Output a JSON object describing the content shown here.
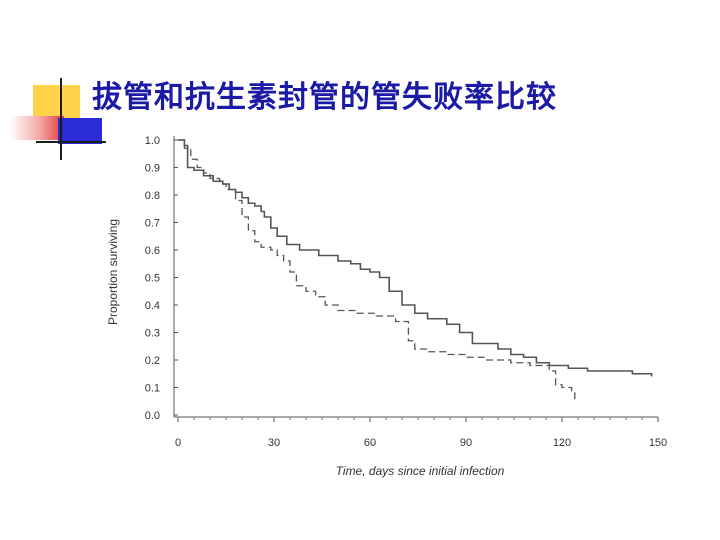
{
  "slide": {
    "title": "拔管和抗生素封管的管失败率比较"
  },
  "colors": {
    "title": "#1a1aa6",
    "deco_yellow": "#ffd24a",
    "deco_blue": "#2b2bd8",
    "deco_pink": "#e23b3b",
    "curve": "#555555"
  },
  "chart_data": {
    "type": "line",
    "title": "",
    "xlabel": "Time, days since initial infection",
    "ylabel": "Proportion surviving",
    "xlim": [
      0,
      150
    ],
    "ylim": [
      0,
      1.0
    ],
    "xticks": [
      0,
      30,
      60,
      90,
      120,
      150
    ],
    "yticks": [
      "0.0",
      "0.1",
      "0.2",
      "0.3",
      "0.4",
      "0.5",
      "0.6",
      "0.7",
      "0.8",
      "0.9",
      "1.0"
    ],
    "grid": false,
    "series": [
      {
        "style": "solid",
        "points": [
          [
            0,
            1.0
          ],
          [
            2,
            0.98
          ],
          [
            3,
            0.9
          ],
          [
            5,
            0.89
          ],
          [
            8,
            0.87
          ],
          [
            11,
            0.85
          ],
          [
            14,
            0.84
          ],
          [
            16,
            0.82
          ],
          [
            18,
            0.81
          ],
          [
            20,
            0.79
          ],
          [
            22,
            0.77
          ],
          [
            24,
            0.76
          ],
          [
            26,
            0.74
          ],
          [
            27,
            0.72
          ],
          [
            29,
            0.68
          ],
          [
            31,
            0.65
          ],
          [
            34,
            0.62
          ],
          [
            38,
            0.6
          ],
          [
            44,
            0.58
          ],
          [
            50,
            0.56
          ],
          [
            54,
            0.55
          ],
          [
            57,
            0.53
          ],
          [
            60,
            0.52
          ],
          [
            63,
            0.5
          ],
          [
            66,
            0.45
          ],
          [
            70,
            0.4
          ],
          [
            74,
            0.37
          ],
          [
            78,
            0.35
          ],
          [
            84,
            0.33
          ],
          [
            88,
            0.3
          ],
          [
            92,
            0.26
          ],
          [
            100,
            0.24
          ],
          [
            104,
            0.22
          ],
          [
            108,
            0.21
          ],
          [
            112,
            0.19
          ],
          [
            116,
            0.18
          ],
          [
            122,
            0.17
          ],
          [
            128,
            0.16
          ],
          [
            132,
            0.16
          ],
          [
            142,
            0.15
          ],
          [
            148,
            0.14
          ]
        ]
      },
      {
        "style": "dashed",
        "points": [
          [
            0,
            1.0
          ],
          [
            2,
            0.97
          ],
          [
            4,
            0.93
          ],
          [
            6,
            0.9
          ],
          [
            8,
            0.88
          ],
          [
            10,
            0.86
          ],
          [
            13,
            0.84
          ],
          [
            15,
            0.82
          ],
          [
            18,
            0.78
          ],
          [
            20,
            0.72
          ],
          [
            22,
            0.67
          ],
          [
            24,
            0.63
          ],
          [
            26,
            0.61
          ],
          [
            29,
            0.6
          ],
          [
            31,
            0.58
          ],
          [
            33,
            0.56
          ],
          [
            35,
            0.52
          ],
          [
            37,
            0.47
          ],
          [
            40,
            0.45
          ],
          [
            43,
            0.43
          ],
          [
            46,
            0.4
          ],
          [
            50,
            0.38
          ],
          [
            56,
            0.37
          ],
          [
            62,
            0.36
          ],
          [
            68,
            0.34
          ],
          [
            72,
            0.27
          ],
          [
            74,
            0.24
          ],
          [
            78,
            0.23
          ],
          [
            84,
            0.22
          ],
          [
            90,
            0.21
          ],
          [
            96,
            0.2
          ],
          [
            104,
            0.19
          ],
          [
            110,
            0.18
          ],
          [
            116,
            0.16
          ],
          [
            118,
            0.11
          ],
          [
            120,
            0.1
          ],
          [
            122,
            0.1
          ],
          [
            123,
            0.08
          ],
          [
            124,
            0.05
          ]
        ]
      }
    ]
  }
}
